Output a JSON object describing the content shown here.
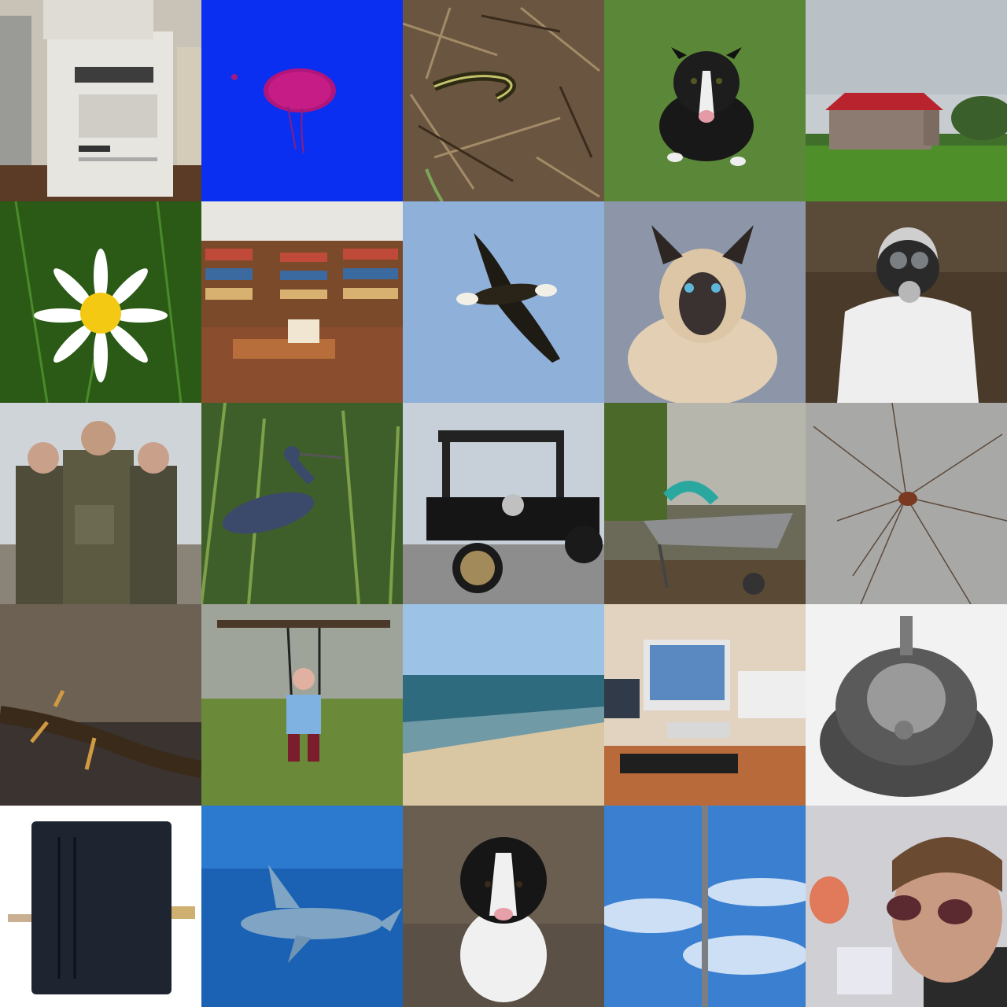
{
  "grid": {
    "rows": 5,
    "columns": 5,
    "tiles": [
      {
        "subject": "photocopier"
      },
      {
        "subject": "jellyfish"
      },
      {
        "subject": "garter-snake"
      },
      {
        "subject": "staffordshire-terrier"
      },
      {
        "subject": "red-roof-barn"
      },
      {
        "subject": "daisy"
      },
      {
        "subject": "library"
      },
      {
        "subject": "bald-eagle"
      },
      {
        "subject": "siamese-cat"
      },
      {
        "subject": "gas-mask-man"
      },
      {
        "subject": "soldiers"
      },
      {
        "subject": "heron"
      },
      {
        "subject": "model-t-car"
      },
      {
        "subject": "wheelbarrow"
      },
      {
        "subject": "harvestman-spider"
      },
      {
        "subject": "newt"
      },
      {
        "subject": "child-on-swing"
      },
      {
        "subject": "seashore"
      },
      {
        "subject": "computer-desk"
      },
      {
        "subject": "pickelhaube-helmet"
      },
      {
        "subject": "battery-pack"
      },
      {
        "subject": "shark"
      },
      {
        "subject": "border-collie-puppy"
      },
      {
        "subject": "flagpole-sky"
      },
      {
        "subject": "person-sunglasses"
      }
    ]
  }
}
